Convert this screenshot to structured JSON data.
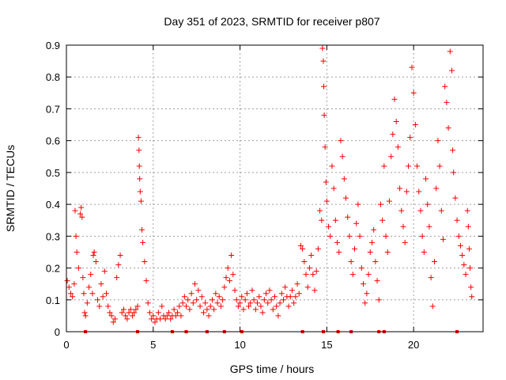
{
  "chart_data": {
    "type": "scatter",
    "title": "Day 351 of 2023, SRMTID for receiver p807",
    "xlabel": "GPS time / hours",
    "ylabel": "SRMTID / TECUs",
    "xlim": [
      0,
      24
    ],
    "ylim": [
      0,
      0.9
    ],
    "xticks": [
      0,
      5,
      10,
      15,
      20
    ],
    "yticks": [
      0,
      0.1,
      0.2,
      0.3,
      0.4,
      0.5,
      0.6,
      0.7,
      0.8,
      0.9
    ],
    "grid": true,
    "marker": "+",
    "color": "#ff0000",
    "series": [
      {
        "name": "SRMTID",
        "points": [
          [
            0.05,
            0.16
          ],
          [
            0.15,
            0.14
          ],
          [
            0.25,
            0.12
          ],
          [
            0.35,
            0.11
          ],
          [
            0.45,
            0.15
          ],
          [
            0.5,
            0.38
          ],
          [
            0.55,
            0.3
          ],
          [
            0.6,
            0.25
          ],
          [
            0.7,
            0.2
          ],
          [
            0.8,
            0.37
          ],
          [
            0.85,
            0.39
          ],
          [
            0.9,
            0.36
          ],
          [
            0.95,
            0.17
          ],
          [
            1.0,
            0.12
          ],
          [
            1.05,
            0.06
          ],
          [
            1.1,
            0.05
          ],
          [
            1.2,
            0.09
          ],
          [
            1.3,
            0.14
          ],
          [
            1.4,
            0.18
          ],
          [
            1.5,
            0.12
          ],
          [
            1.55,
            0.24
          ],
          [
            1.6,
            0.25
          ],
          [
            1.7,
            0.22
          ],
          [
            1.8,
            0.1
          ],
          [
            1.9,
            0.08
          ],
          [
            2.0,
            0.15
          ],
          [
            2.1,
            0.11
          ],
          [
            2.2,
            0.19
          ],
          [
            2.3,
            0.12
          ],
          [
            2.4,
            0.08
          ],
          [
            2.5,
            0.06
          ],
          [
            2.6,
            0.05
          ],
          [
            2.7,
            0.03
          ],
          [
            2.8,
            0.04
          ],
          [
            2.9,
            0.17
          ],
          [
            3.0,
            0.21
          ],
          [
            3.1,
            0.24
          ],
          [
            3.2,
            0.06
          ],
          [
            3.3,
            0.07
          ],
          [
            3.4,
            0.05
          ],
          [
            3.5,
            0.04
          ],
          [
            3.6,
            0.06
          ],
          [
            3.7,
            0.07
          ],
          [
            3.8,
            0.05
          ],
          [
            3.9,
            0.06
          ],
          [
            4.0,
            0.07
          ],
          [
            4.1,
            0.08
          ],
          [
            4.15,
            0.61
          ],
          [
            4.18,
            0.57
          ],
          [
            4.2,
            0.52
          ],
          [
            4.22,
            0.48
          ],
          [
            4.25,
            0.44
          ],
          [
            4.3,
            0.41
          ],
          [
            4.35,
            0.32
          ],
          [
            4.4,
            0.28
          ],
          [
            4.5,
            0.22
          ],
          [
            4.6,
            0.16
          ],
          [
            4.7,
            0.09
          ],
          [
            4.8,
            0.06
          ],
          [
            4.9,
            0.04
          ],
          [
            5.0,
            0.05
          ],
          [
            5.1,
            0.03
          ],
          [
            5.2,
            0.04
          ],
          [
            5.3,
            0.06
          ],
          [
            5.4,
            0.04
          ],
          [
            5.5,
            0.08
          ],
          [
            5.6,
            0.05
          ],
          [
            5.7,
            0.04
          ],
          [
            5.8,
            0.05
          ],
          [
            5.9,
            0.06
          ],
          [
            6.0,
            0.04
          ],
          [
            6.1,
            0.05
          ],
          [
            6.2,
            0.07
          ],
          [
            6.3,
            0.05
          ],
          [
            6.4,
            0.06
          ],
          [
            6.5,
            0.08
          ],
          [
            6.6,
            0.05
          ],
          [
            6.7,
            0.09
          ],
          [
            6.8,
            0.11
          ],
          [
            6.9,
            0.08
          ],
          [
            7.0,
            0.1
          ],
          [
            7.1,
            0.07
          ],
          [
            7.2,
            0.12
          ],
          [
            7.3,
            0.09
          ],
          [
            7.4,
            0.15
          ],
          [
            7.5,
            0.1
          ],
          [
            7.6,
            0.13
          ],
          [
            7.7,
            0.08
          ],
          [
            7.8,
            0.11
          ],
          [
            7.9,
            0.06
          ],
          [
            8.0,
            0.09
          ],
          [
            8.1,
            0.07
          ],
          [
            8.2,
            0.05
          ],
          [
            8.3,
            0.08
          ],
          [
            8.4,
            0.1
          ],
          [
            8.5,
            0.07
          ],
          [
            8.6,
            0.12
          ],
          [
            8.7,
            0.09
          ],
          [
            8.8,
            0.11
          ],
          [
            8.9,
            0.08
          ],
          [
            9.0,
            0.1
          ],
          [
            9.1,
            0.14
          ],
          [
            9.2,
            0.17
          ],
          [
            9.3,
            0.2
          ],
          [
            9.4,
            0.16
          ],
          [
            9.5,
            0.24
          ],
          [
            9.6,
            0.18
          ],
          [
            9.7,
            0.13
          ],
          [
            9.8,
            0.1
          ],
          [
            9.9,
            0.08
          ],
          [
            10.0,
            0.09
          ],
          [
            10.1,
            0.11
          ],
          [
            10.2,
            0.07
          ],
          [
            10.3,
            0.1
          ],
          [
            10.4,
            0.12
          ],
          [
            10.5,
            0.08
          ],
          [
            10.6,
            0.09
          ],
          [
            10.7,
            0.13
          ],
          [
            10.8,
            0.1
          ],
          [
            10.9,
            0.07
          ],
          [
            11.0,
            0.09
          ],
          [
            11.1,
            0.11
          ],
          [
            11.2,
            0.08
          ],
          [
            11.3,
            0.06
          ],
          [
            11.4,
            0.1
          ],
          [
            11.5,
            0.12
          ],
          [
            11.6,
            0.09
          ],
          [
            11.7,
            0.13
          ],
          [
            11.8,
            0.1
          ],
          [
            11.9,
            0.07
          ],
          [
            12.0,
            0.11
          ],
          [
            12.1,
            0.08
          ],
          [
            12.2,
            0.05
          ],
          [
            12.3,
            0.09
          ],
          [
            12.4,
            0.12
          ],
          [
            12.5,
            0.1
          ],
          [
            12.6,
            0.14
          ],
          [
            12.7,
            0.11
          ],
          [
            12.8,
            0.08
          ],
          [
            12.9,
            0.11
          ],
          [
            13.0,
            0.13
          ],
          [
            13.1,
            0.09
          ],
          [
            13.2,
            0.11
          ],
          [
            13.3,
            0.15
          ],
          [
            13.4,
            0.12
          ],
          [
            13.5,
            0.27
          ],
          [
            13.6,
            0.26
          ],
          [
            13.7,
            0.22
          ],
          [
            13.8,
            0.18
          ],
          [
            13.9,
            0.14
          ],
          [
            14.0,
            0.2
          ],
          [
            14.1,
            0.24
          ],
          [
            14.2,
            0.18
          ],
          [
            14.3,
            0.13
          ],
          [
            14.4,
            0.19
          ],
          [
            14.5,
            0.26
          ],
          [
            14.6,
            0.38
          ],
          [
            14.7,
            0.35
          ],
          [
            14.75,
            0.89
          ],
          [
            14.8,
            0.85
          ],
          [
            14.82,
            0.77
          ],
          [
            14.85,
            0.68
          ],
          [
            14.9,
            0.58
          ],
          [
            14.95,
            0.47
          ],
          [
            15.0,
            0.41
          ],
          [
            15.1,
            0.33
          ],
          [
            15.2,
            0.3
          ],
          [
            15.3,
            0.52
          ],
          [
            15.4,
            0.45
          ],
          [
            15.5,
            0.35
          ],
          [
            15.6,
            0.28
          ],
          [
            15.7,
            0.25
          ],
          [
            15.8,
            0.6
          ],
          [
            15.9,
            0.55
          ],
          [
            16.0,
            0.48
          ],
          [
            16.1,
            0.42
          ],
          [
            16.2,
            0.36
          ],
          [
            16.3,
            0.3
          ],
          [
            16.4,
            0.22
          ],
          [
            16.5,
            0.18
          ],
          [
            16.6,
            0.26
          ],
          [
            16.7,
            0.34
          ],
          [
            16.8,
            0.4
          ],
          [
            16.9,
            0.3
          ],
          [
            17.0,
            0.2
          ],
          [
            17.1,
            0.15
          ],
          [
            17.2,
            0.09
          ],
          [
            17.3,
            0.12
          ],
          [
            17.4,
            0.18
          ],
          [
            17.5,
            0.25
          ],
          [
            17.6,
            0.28
          ],
          [
            17.7,
            0.32
          ],
          [
            17.8,
            0.22
          ],
          [
            17.9,
            0.16
          ],
          [
            18.0,
            0.1
          ],
          [
            18.1,
            0.4
          ],
          [
            18.2,
            0.35
          ],
          [
            18.3,
            0.52
          ],
          [
            18.4,
            0.3
          ],
          [
            18.5,
            0.25
          ],
          [
            18.6,
            0.41
          ],
          [
            18.7,
            0.55
          ],
          [
            18.8,
            0.62
          ],
          [
            18.9,
            0.73
          ],
          [
            19.0,
            0.66
          ],
          [
            19.1,
            0.58
          ],
          [
            19.2,
            0.45
          ],
          [
            19.3,
            0.38
          ],
          [
            19.4,
            0.33
          ],
          [
            19.5,
            0.28
          ],
          [
            19.6,
            0.44
          ],
          [
            19.7,
            0.52
          ],
          [
            19.8,
            0.61
          ],
          [
            19.9,
            0.83
          ],
          [
            20.0,
            0.75
          ],
          [
            20.1,
            0.65
          ],
          [
            20.2,
            0.52
          ],
          [
            20.3,
            0.44
          ],
          [
            20.4,
            0.38
          ],
          [
            20.5,
            0.3
          ],
          [
            20.6,
            0.25
          ],
          [
            20.7,
            0.48
          ],
          [
            20.8,
            0.4
          ],
          [
            20.9,
            0.33
          ],
          [
            21.0,
            0.17
          ],
          [
            21.1,
            0.08
          ],
          [
            21.2,
            0.22
          ],
          [
            21.3,
            0.45
          ],
          [
            21.4,
            0.6
          ],
          [
            21.5,
            0.52
          ],
          [
            21.6,
            0.38
          ],
          [
            21.7,
            0.29
          ],
          [
            21.8,
            0.77
          ],
          [
            21.9,
            0.72
          ],
          [
            22.0,
            0.64
          ],
          [
            22.1,
            0.88
          ],
          [
            22.2,
            0.82
          ],
          [
            22.25,
            0.57
          ],
          [
            22.3,
            0.5
          ],
          [
            22.4,
            0.42
          ],
          [
            22.5,
            0.35
          ],
          [
            22.6,
            0.3
          ],
          [
            22.7,
            0.27
          ],
          [
            22.8,
            0.24
          ],
          [
            22.9,
            0.21
          ],
          [
            23.0,
            0.18
          ],
          [
            23.1,
            0.38
          ],
          [
            23.15,
            0.33
          ],
          [
            23.2,
            0.26
          ],
          [
            23.25,
            0.2
          ],
          [
            23.3,
            0.14
          ],
          [
            23.35,
            0.11
          ]
        ]
      }
    ],
    "axis_markers": [
      1.1,
      4.1,
      6.1,
      6.9,
      8.1,
      9.1,
      10.1,
      13.6,
      14.8,
      15.65,
      16.4,
      18.0,
      18.3,
      22.5
    ]
  }
}
